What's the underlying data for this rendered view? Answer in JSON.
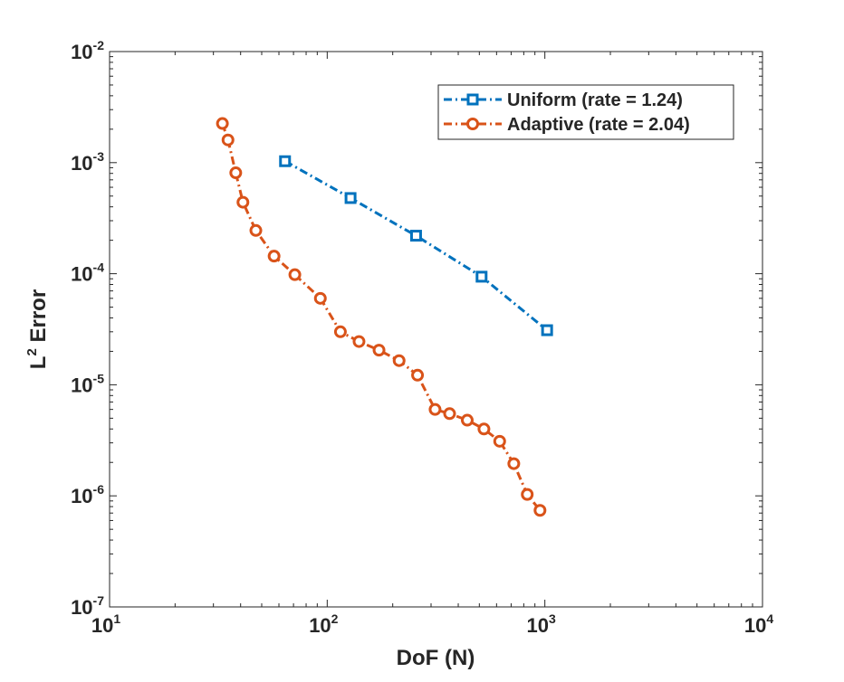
{
  "chart_data": {
    "type": "line",
    "x_scale": "log",
    "y_scale": "log",
    "xlabel": "DoF (N)",
    "ylabel_base": "L",
    "ylabel_exp": "2",
    "ylabel_rest": " Error",
    "xlim": [
      10,
      10000
    ],
    "ylim": [
      1e-07,
      0.01
    ],
    "x_ticks": [
      {
        "value": 10,
        "base": "10",
        "exp": "1"
      },
      {
        "value": 100,
        "base": "10",
        "exp": "2"
      },
      {
        "value": 1000,
        "base": "10",
        "exp": "3"
      },
      {
        "value": 10000,
        "base": "10",
        "exp": "4"
      }
    ],
    "y_ticks": [
      {
        "value": 1e-07,
        "base": "10",
        "exp": "-7"
      },
      {
        "value": 1e-06,
        "base": "10",
        "exp": "-6"
      },
      {
        "value": 1e-05,
        "base": "10",
        "exp": "-5"
      },
      {
        "value": 0.0001,
        "base": "10",
        "exp": "-4"
      },
      {
        "value": 0.001,
        "base": "10",
        "exp": "-3"
      },
      {
        "value": 0.01,
        "base": "10",
        "exp": "-2"
      }
    ],
    "grid": false,
    "legend_position": "top-right",
    "series": [
      {
        "name": "Uniform  (rate = 1.24)",
        "color": "#0072BD",
        "marker": "square",
        "line_style": "dash-dot",
        "x": [
          64,
          128,
          256,
          512,
          1024
        ],
        "y": [
          0.00103,
          0.00048,
          0.00022,
          9.4e-05,
          3.1e-05
        ]
      },
      {
        "name": "Adaptive (rate = 2.04)",
        "color": "#D95319",
        "marker": "circle",
        "line_style": "dash-dot",
        "x": [
          33,
          35,
          38,
          41,
          47,
          57,
          71,
          93,
          115,
          140,
          173,
          214,
          260,
          313,
          365,
          440,
          525,
          620,
          720,
          830,
          950
        ],
        "y": [
          0.00225,
          0.0016,
          0.00081,
          0.00044,
          0.000245,
          0.000144,
          9.8e-05,
          6e-05,
          3e-05,
          2.45e-05,
          2.05e-05,
          1.65e-05,
          1.22e-05,
          6e-06,
          5.5e-06,
          4.8e-06,
          4e-06,
          3.1e-06,
          1.95e-06,
          1.03e-06,
          7.4e-07
        ]
      }
    ]
  }
}
